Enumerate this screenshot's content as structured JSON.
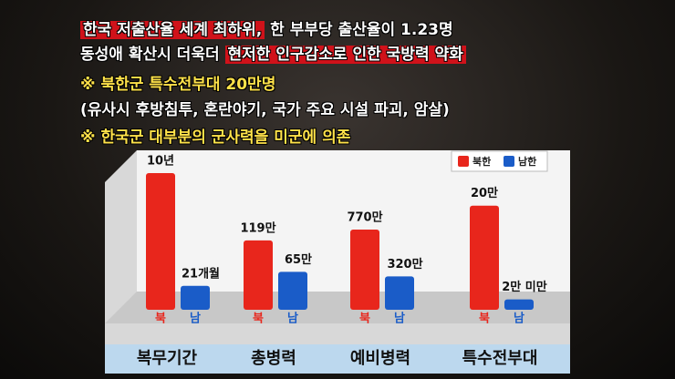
{
  "headline": [
    [
      {
        "text": "한국 저출산율 세계 최하위,",
        "style": "highlight"
      },
      {
        "text": " 한 부부당 출산율이 1.23명",
        "style": "plain"
      }
    ],
    [
      {
        "text": "동성애 확산시 더욱더 ",
        "style": "plain"
      },
      {
        "text": "현저한 인구감소로 인한 국방력 약화",
        "style": "highlight"
      }
    ],
    [
      {
        "text": "※ 북한군 특수전부대 20만명",
        "style": "yellow"
      }
    ],
    [
      {
        "text": " (유사시 후방침투, 혼란야기, 국가 주요 시설 파괴, 암살)",
        "style": "plain"
      }
    ],
    [
      {
        "text": "※ 한국군 대부분의 군사력을 미군에 의존",
        "style": "yellow"
      }
    ]
  ],
  "legend": [
    {
      "name": "북한",
      "color": "#e8261c"
    },
    {
      "name": "남한",
      "color": "#1a5cc8"
    }
  ],
  "chart_data": [
    {
      "type": "bar",
      "title": "복무기간",
      "categories": [
        "북",
        "남"
      ],
      "values": [
        120,
        21
      ],
      "value_labels": [
        "10년",
        "21개월"
      ],
      "ylim": [
        0,
        128
      ]
    },
    {
      "type": "bar",
      "title": "총병력",
      "categories": [
        "북",
        "남"
      ],
      "values": [
        119,
        65
      ],
      "value_labels": [
        "119만",
        "65만"
      ],
      "ylim": [
        0,
        250
      ]
    },
    {
      "type": "bar",
      "title": "예비병력",
      "categories": [
        "북",
        "남"
      ],
      "values": [
        770,
        320
      ],
      "value_labels": [
        "770만",
        "320만"
      ],
      "ylim": [
        0,
        1400
      ]
    },
    {
      "type": "bar",
      "title": "특수전부대",
      "categories": [
        "북",
        "남"
      ],
      "values": [
        20,
        2
      ],
      "value_labels": [
        "20만",
        "2만 미만"
      ],
      "ylim": [
        0,
        28
      ]
    }
  ]
}
